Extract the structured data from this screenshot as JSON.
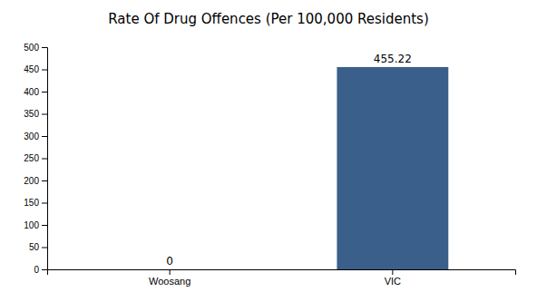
{
  "chart_data": {
    "type": "bar",
    "title": "Rate Of Drug Offences (Per 100,000 Residents)",
    "categories": [
      "Woosang",
      "VIC"
    ],
    "values": [
      0,
      455.22
    ],
    "color": "#3a5f8a",
    "ylim": [
      0,
      500
    ],
    "yticks": [
      0,
      50,
      100,
      150,
      200,
      250,
      300,
      350,
      400,
      450,
      500
    ],
    "grid": false,
    "data_labels": true
  }
}
